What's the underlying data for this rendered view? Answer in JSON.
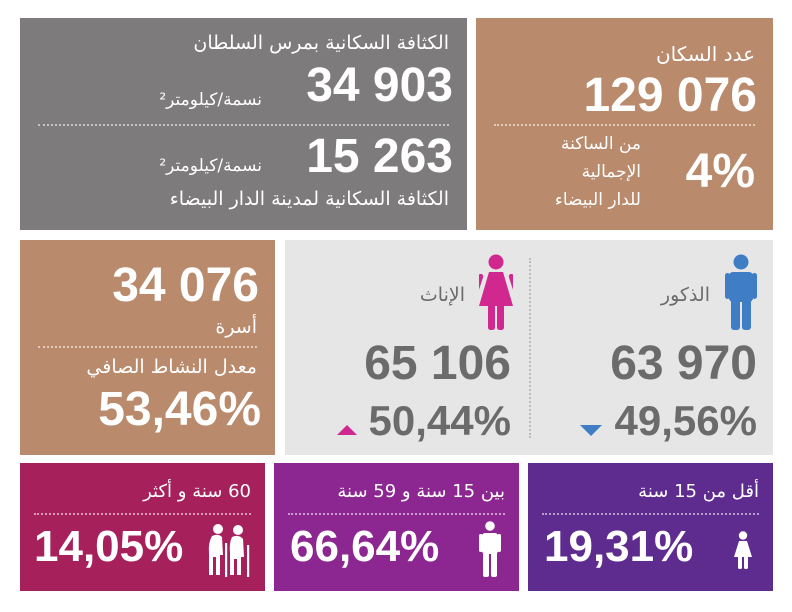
{
  "colors": {
    "brown": "#b98a6c",
    "gray": "#7d7b7b",
    "light_gray": "#e6e6e6",
    "text_gray": "#6b6b6b",
    "male_blue": "#3f7dc5",
    "female_pink": "#d0288f",
    "crimson": "#a6205b",
    "magenta": "#8c2690",
    "purple": "#5e2c8e"
  },
  "population": {
    "title": "عدد السكان",
    "value": "129 076",
    "share_value": "4%",
    "share_lines": [
      "من الساكنة",
      "الإجمالية",
      "للدار البيضاء"
    ]
  },
  "density": {
    "local_title": "الكثافة السكانية بمرس السلطان",
    "local_value": "34 903",
    "local_unit": "نسمة/كيلومتر²",
    "city_value": "15 263",
    "city_unit": "نسمة/كيلومتر²",
    "city_title": "الكثافة السكانية لمدينة الدار البيضاء"
  },
  "households": {
    "value": "34 076",
    "label": "أسرة",
    "activity_label": "معدل النشاط الصافي",
    "activity_value": "53,46%"
  },
  "gender": {
    "male_label": "الذكور",
    "male_count": "63 970",
    "male_percent": "49,56%",
    "male_icon": "male-person-icon",
    "male_trend_icon": "triangle-down-icon",
    "female_label": "الإناث",
    "female_count": "65 106",
    "female_percent": "50,44%",
    "female_icon": "female-person-icon",
    "female_trend_icon": "triangle-up-icon"
  },
  "age_groups": {
    "under15_label": "أقل من 15 سنة",
    "under15_value": "19,31%",
    "under15_icon": "child-icon",
    "mid_label": "بين 15 سنة و 59 سنة",
    "mid_value": "66,64%",
    "mid_icon": "adult-icon",
    "senior_label": "60 سنة و أكثر",
    "senior_value": "14,05%",
    "senior_icon": "elderly-couple-icon"
  }
}
